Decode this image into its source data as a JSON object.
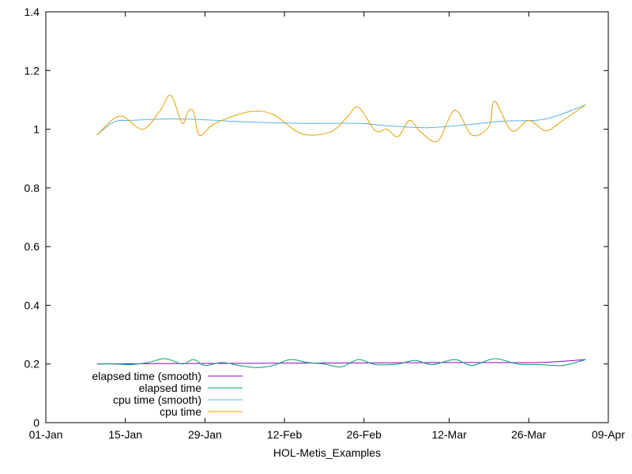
{
  "chart_data": {
    "type": "line",
    "xlabel": "HOL-Metis_Examples",
    "ylabel": "",
    "ylim": [
      0,
      1.4
    ],
    "yticks": [
      "0",
      "0.2",
      "0.4",
      "0.6",
      "0.8",
      "1",
      "1.2",
      "1.4"
    ],
    "xticks": [
      "01-Jan",
      "15-Jan",
      "29-Jan",
      "12-Feb",
      "26-Feb",
      "12-Mar",
      "26-Mar",
      "09-Apr"
    ],
    "legend_position": "bottom-left",
    "grid": false,
    "series": [
      {
        "name": "elapsed time (smooth)",
        "color": "#9400d3",
        "x": [
          "10-Jan",
          "20-Jan",
          "01-Feb",
          "15-Feb",
          "01-Mar",
          "15-Mar",
          "28-Mar",
          "05-Apr"
        ],
        "y": [
          0.2,
          0.201,
          0.202,
          0.203,
          0.204,
          0.205,
          0.205,
          0.215
        ]
      },
      {
        "name": "elapsed time",
        "color": "#009e73",
        "x": [
          "10-Jan",
          "13-Jan",
          "16-Jan",
          "19-Jan",
          "22-Jan",
          "25-Jan",
          "27-Jan",
          "29-Jan",
          "01-Feb",
          "04-Feb",
          "07-Feb",
          "10-Feb",
          "13-Feb",
          "16-Feb",
          "19-Feb",
          "22-Feb",
          "25-Feb",
          "28-Feb",
          "03-Mar",
          "06-Mar",
          "09-Mar",
          "13-Mar",
          "16-Mar",
          "20-Mar",
          "24-Mar",
          "28-Mar",
          "01-Apr",
          "05-Apr"
        ],
        "y": [
          0.2,
          0.2,
          0.198,
          0.205,
          0.218,
          0.2,
          0.215,
          0.195,
          0.205,
          0.195,
          0.188,
          0.195,
          0.215,
          0.205,
          0.2,
          0.19,
          0.215,
          0.198,
          0.2,
          0.212,
          0.198,
          0.215,
          0.195,
          0.218,
          0.2,
          0.198,
          0.195,
          0.215
        ]
      },
      {
        "name": "cpu time (smooth)",
        "color": "#56b4e9",
        "x": [
          "10-Jan",
          "13-Jan",
          "16-Jan",
          "22-Jan",
          "28-Jan",
          "05-Feb",
          "15-Feb",
          "25-Feb",
          "01-Mar",
          "08-Mar",
          "15-Mar",
          "22-Mar",
          "29-Mar",
          "05-Apr"
        ],
        "y": [
          0.98,
          1.025,
          1.03,
          1.035,
          1.033,
          1.025,
          1.02,
          1.02,
          1.012,
          1.005,
          1.015,
          1.028,
          1.035,
          1.083
        ]
      },
      {
        "name": "cpu time",
        "color": "#e69f00",
        "x": [
          "10-Jan",
          "14-Jan",
          "18-Jan",
          "21-Jan",
          "23-Jan",
          "25-Jan",
          "26-Jan",
          "27-Jan",
          "28-Jan",
          "30-Jan",
          "01-Feb",
          "06-Feb",
          "10-Feb",
          "15-Feb",
          "20-Feb",
          "23-Feb",
          "25-Feb",
          "28-Feb",
          "01-Mar",
          "03-Mar",
          "05-Mar",
          "07-Mar",
          "10-Mar",
          "13-Mar",
          "16-Mar",
          "19-Mar",
          "20-Mar",
          "23-Mar",
          "26-Mar",
          "29-Mar",
          "01-Apr",
          "05-Apr"
        ],
        "y": [
          0.98,
          1.045,
          1.0,
          1.06,
          1.115,
          1.02,
          1.06,
          1.06,
          0.98,
          1.01,
          1.03,
          1.06,
          1.05,
          0.985,
          0.99,
          1.04,
          1.075,
          0.995,
          1.0,
          0.975,
          1.03,
          0.99,
          0.96,
          1.065,
          0.98,
          1.01,
          1.095,
          0.995,
          1.03,
          0.995,
          1.03,
          1.083
        ]
      }
    ]
  }
}
